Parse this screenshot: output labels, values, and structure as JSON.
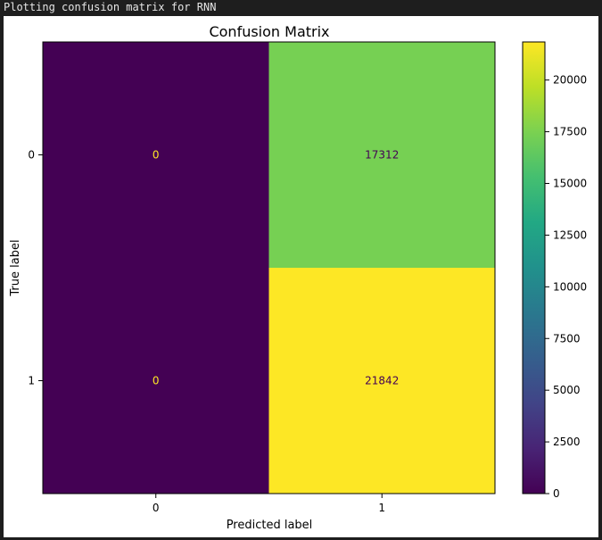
{
  "console": {
    "output_text": "Plotting confusion matrix for RNN"
  },
  "colors": {
    "console_bg": "#1e1e1e",
    "figure_bg": "#ffffff"
  },
  "chart_data": {
    "type": "heatmap",
    "title": "Confusion Matrix",
    "xlabel": "Predicted label",
    "ylabel": "True label",
    "x_categories": [
      "0",
      "1"
    ],
    "y_categories": [
      "0",
      "1"
    ],
    "values": [
      [
        0,
        17312
      ],
      [
        0,
        21842
      ]
    ],
    "cell_labels": [
      [
        "0",
        "17312"
      ],
      [
        "0",
        "21842"
      ]
    ],
    "colormap": "viridis",
    "colorbar": {
      "min": 0,
      "max": 21842,
      "ticks": [
        0,
        2500,
        5000,
        7500,
        10000,
        12500,
        15000,
        17500,
        20000
      ],
      "tick_labels": [
        "0",
        "2500",
        "5000",
        "7500",
        "10000",
        "12500",
        "15000",
        "17500",
        "20000"
      ]
    },
    "cell_text_colors": {
      "dark_cell": "#fde725",
      "light_cell": "#440154"
    }
  }
}
